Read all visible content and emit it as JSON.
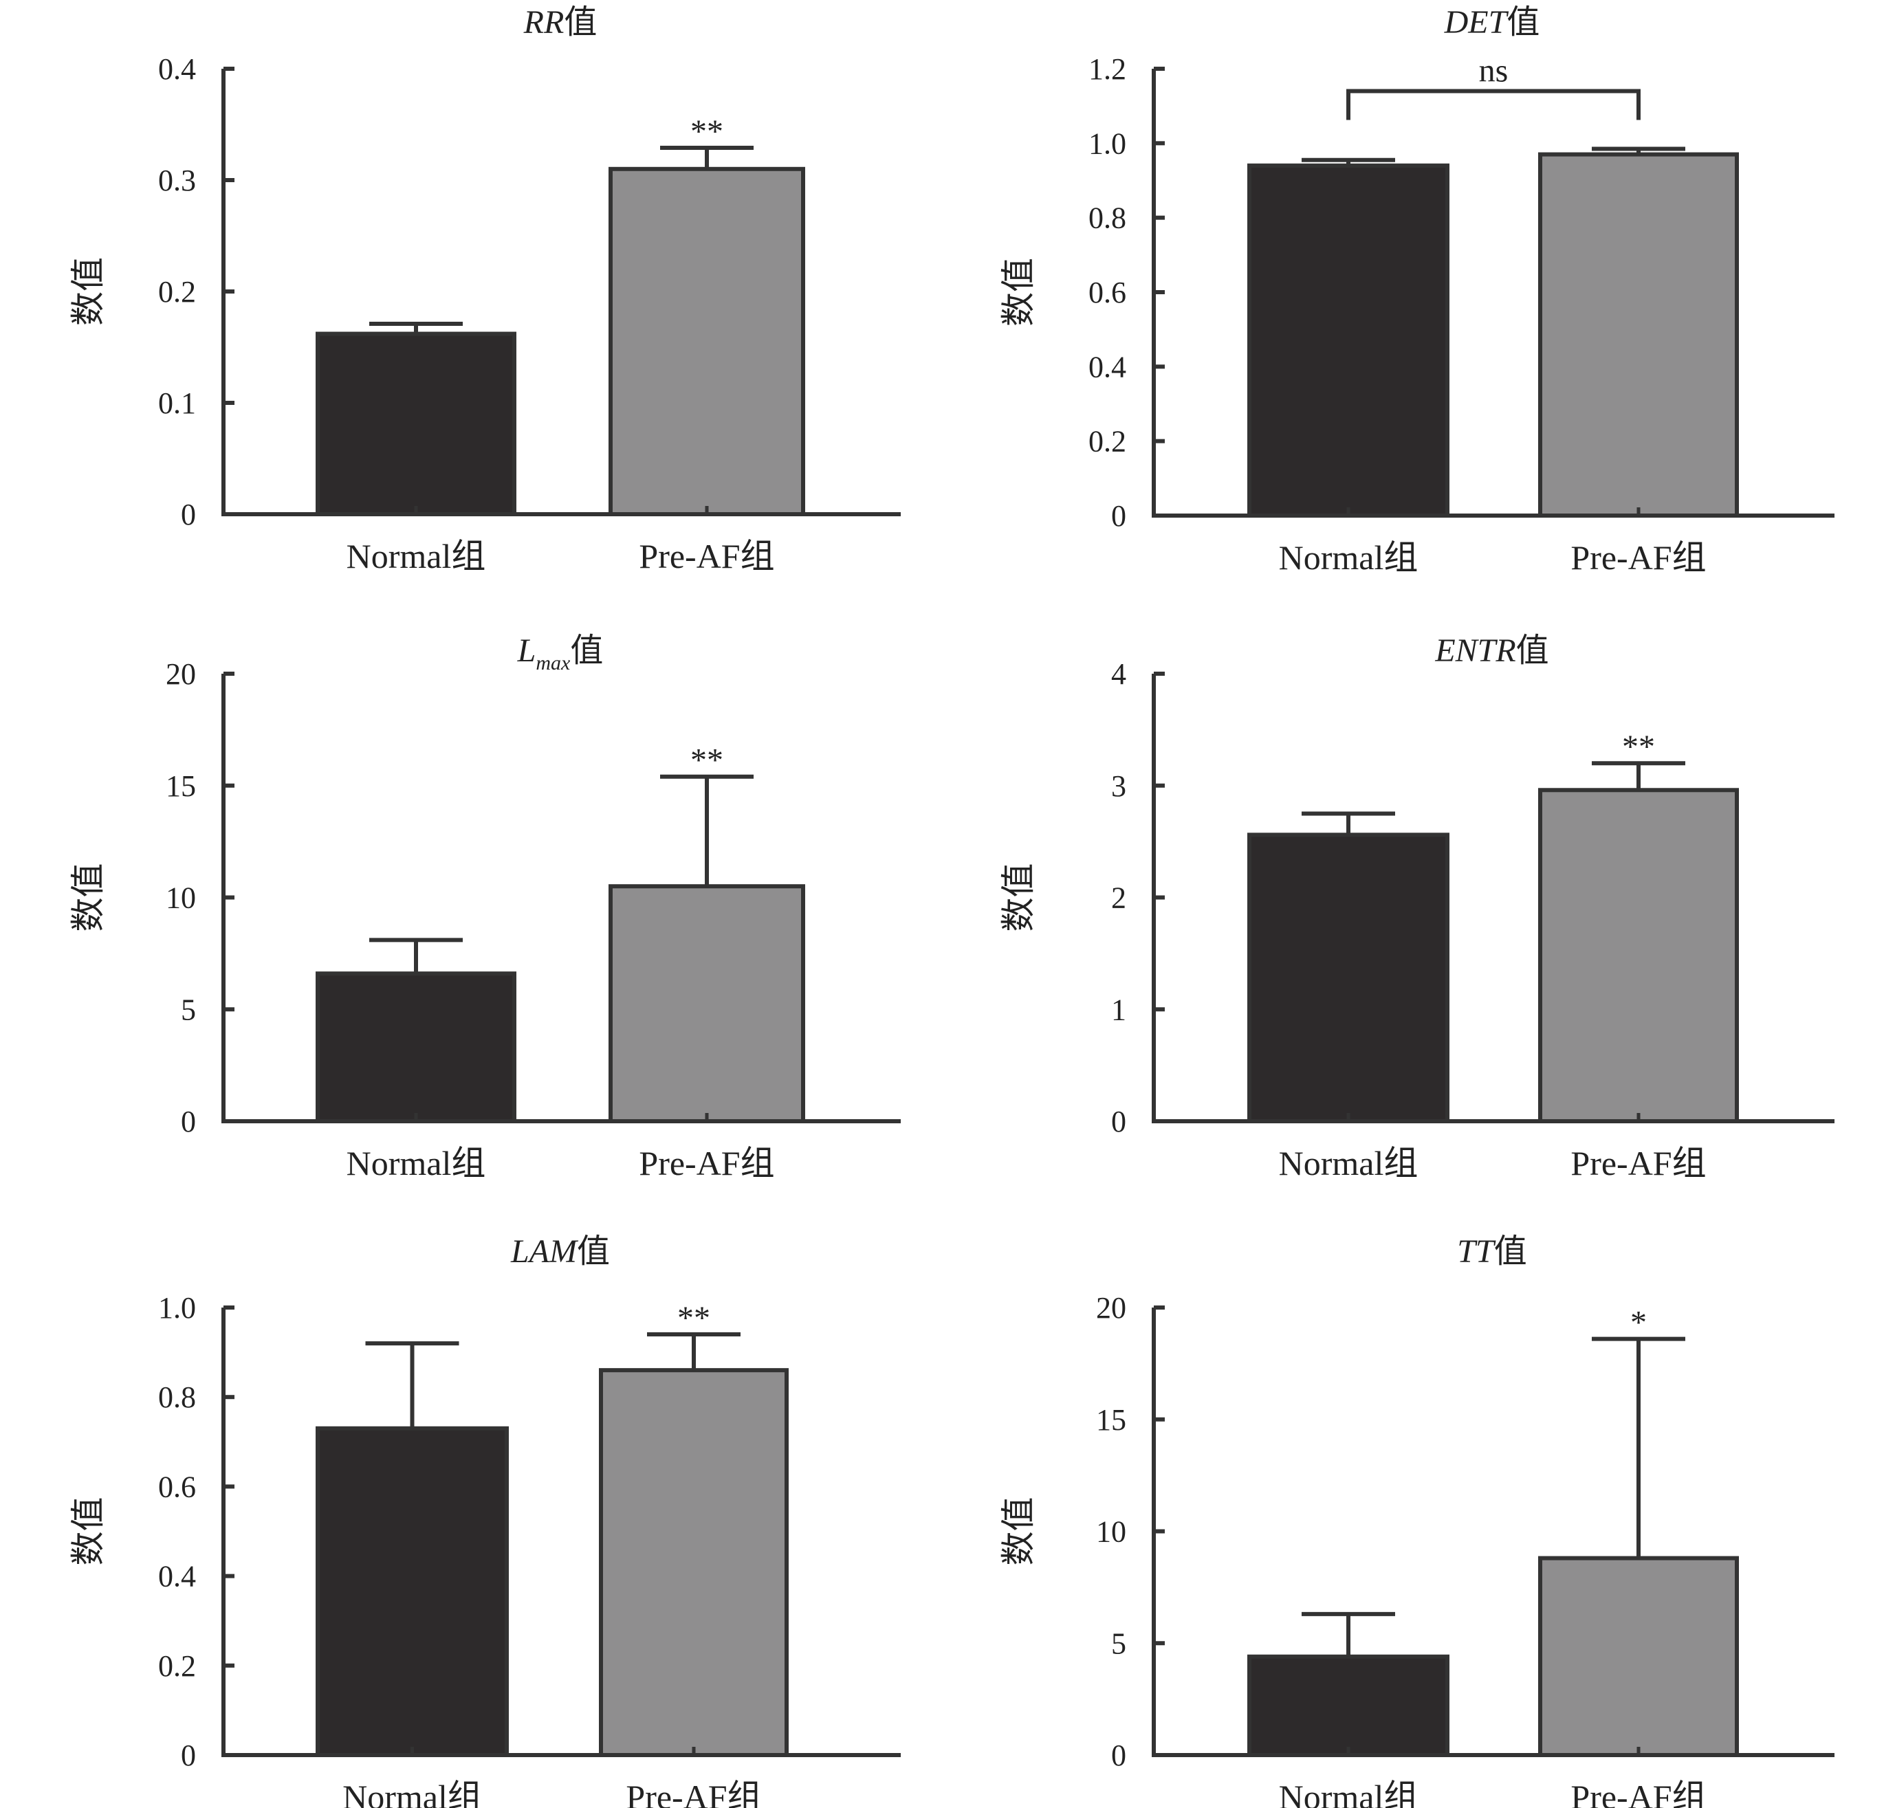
{
  "chart_data": [
    {
      "type": "bar",
      "title": "RR",
      "title_suffix": "值",
      "ylabel": "数值",
      "categories": [
        "Normal组",
        "Pre-AF组"
      ],
      "values": [
        0.162,
        0.31
      ],
      "errors": [
        0.009,
        0.019
      ],
      "ylim": [
        0,
        0.4
      ],
      "yticks": [
        0,
        0.1,
        0.2,
        0.3,
        0.4
      ],
      "yticklabels": [
        "0",
        "0.1",
        "0.2",
        "0.3",
        "0.4"
      ],
      "significance": [
        {
          "category_index": 1,
          "label": "**"
        }
      ],
      "bar_colors": [
        "#2d2a2b",
        "#8f8e8f"
      ],
      "grid": false,
      "legend": "none"
    },
    {
      "type": "bar",
      "title": "DET",
      "title_suffix": "值",
      "ylabel": "数值",
      "categories": [
        "Normal组",
        "Pre-AF组"
      ],
      "values": [
        0.94,
        0.97
      ],
      "errors": [
        0.015,
        0.015
      ],
      "ylim": [
        0,
        1.2
      ],
      "yticks": [
        0,
        0.2,
        0.4,
        0.6,
        0.8,
        1.0,
        1.2
      ],
      "yticklabels": [
        "0",
        "0.2",
        "0.4",
        "0.6",
        "0.8",
        "1.0",
        "1.2"
      ],
      "bracket": {
        "from": 0,
        "to": 1,
        "y": 1.14,
        "label": "ns"
      },
      "bar_colors": [
        "#2d2a2b",
        "#8f8e8f"
      ],
      "grid": false,
      "legend": "none"
    },
    {
      "type": "bar",
      "title": "L",
      "title_sub": "max",
      "title_suffix": "值",
      "ylabel": "数值",
      "categories": [
        "Normal组",
        "Pre-AF组"
      ],
      "values": [
        6.6,
        10.5
      ],
      "errors": [
        1.5,
        4.9
      ],
      "ylim": [
        0,
        20
      ],
      "yticks": [
        0,
        5,
        10,
        15,
        20
      ],
      "yticklabels": [
        "0",
        "5",
        "10",
        "15",
        "20"
      ],
      "significance": [
        {
          "category_index": 1,
          "label": "**"
        }
      ],
      "bar_colors": [
        "#2d2a2b",
        "#8f8e8f"
      ],
      "grid": false,
      "legend": "none"
    },
    {
      "type": "bar",
      "title": "ENTR",
      "title_suffix": "值",
      "ylabel": "数值",
      "categories": [
        "Normal组",
        "Pre-AF组"
      ],
      "values": [
        2.56,
        2.96
      ],
      "errors": [
        0.19,
        0.24
      ],
      "ylim": [
        0,
        4
      ],
      "yticks": [
        0,
        1,
        2,
        3,
        4
      ],
      "yticklabels": [
        "0",
        "1",
        "2",
        "3",
        "4"
      ],
      "significance": [
        {
          "category_index": 1,
          "label": "**"
        }
      ],
      "bar_colors": [
        "#2d2a2b",
        "#8f8e8f"
      ],
      "grid": false,
      "legend": "none"
    },
    {
      "type": "bar",
      "title": "LAM",
      "title_suffix": "值",
      "ylabel": "数值",
      "categories": [
        "Normal组",
        "Pre-AF组"
      ],
      "values": [
        0.73,
        0.86
      ],
      "errors": [
        0.19,
        0.08
      ],
      "ylim": [
        0,
        1.0
      ],
      "yticks": [
        0,
        0.2,
        0.4,
        0.6,
        0.8,
        1.0
      ],
      "yticklabels": [
        "0",
        "0.2",
        "0.4",
        "0.6",
        "0.8",
        "1.0"
      ],
      "significance": [
        {
          "category_index": 1,
          "label": "**"
        }
      ],
      "bar_colors": [
        "#2d2a2b",
        "#8f8e8f"
      ],
      "grid": false,
      "legend": "none"
    },
    {
      "type": "bar",
      "title": "TT",
      "title_suffix": "值",
      "ylabel": "数值",
      "categories": [
        "Normal组",
        "Pre-AF组"
      ],
      "values": [
        4.4,
        8.8
      ],
      "errors": [
        1.9,
        9.8
      ],
      "ylim": [
        0,
        20
      ],
      "yticks": [
        0,
        5,
        10,
        15,
        20
      ],
      "yticklabels": [
        "0",
        "5",
        "10",
        "15",
        "20"
      ],
      "significance": [
        {
          "category_index": 1,
          "label": "*"
        }
      ],
      "bar_colors": [
        "#2d2a2b",
        "#8f8e8f"
      ],
      "grid": false,
      "legend": "none"
    }
  ]
}
